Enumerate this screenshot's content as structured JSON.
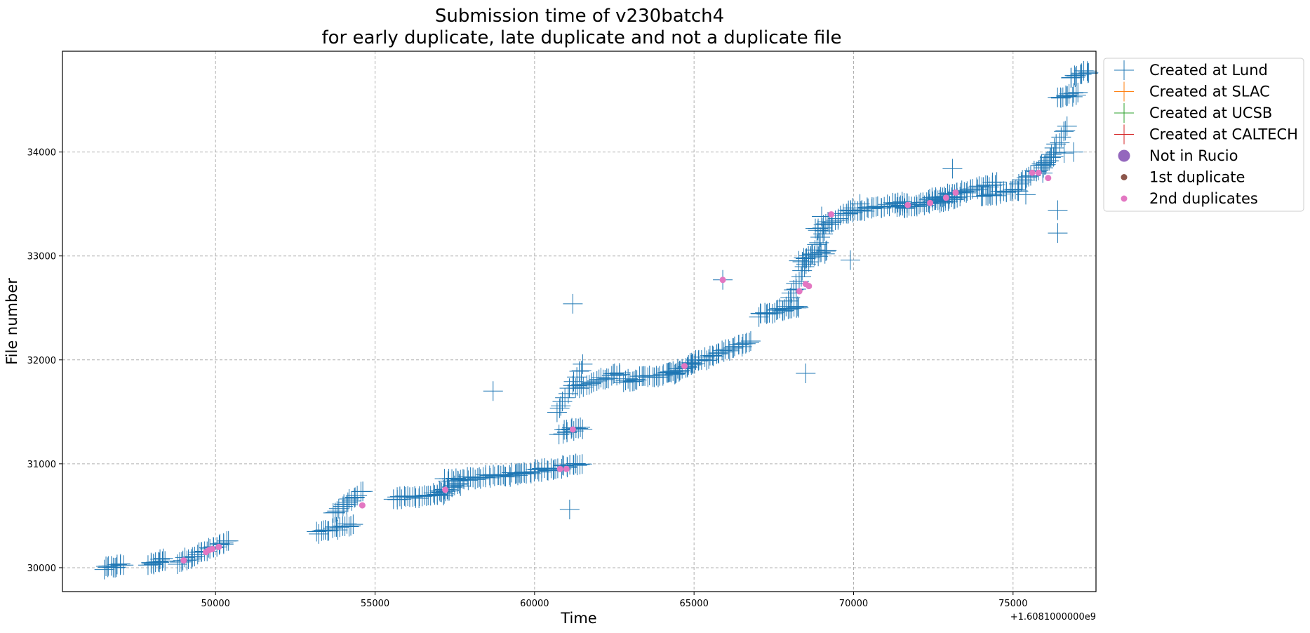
{
  "chart_data": {
    "type": "scatter",
    "title": "Submission time of v230batch4",
    "subtitle": "for early duplicate, late duplicate and not a duplicate file",
    "xlabel": "Time",
    "ylabel": "File number",
    "x_offset_label": "+1.6081000000e9",
    "xlim": [
      45200,
      77600
    ],
    "ylim": [
      29770,
      34970
    ],
    "xticks": [
      50000,
      55000,
      60000,
      65000,
      70000,
      75000
    ],
    "yticks": [
      30000,
      31000,
      32000,
      33000,
      34000
    ],
    "grid": true,
    "legend_position": "upper right, outside plot",
    "legend": [
      {
        "label": "Created at Lund",
        "marker": "plus",
        "color": "#1f77b4"
      },
      {
        "label": "Created at SLAC",
        "marker": "plus",
        "color": "#ff7f0e"
      },
      {
        "label": "Created at UCSB",
        "marker": "plus",
        "color": "#2ca02c"
      },
      {
        "label": "Created at CALTECH",
        "marker": "plus",
        "color": "#d62728"
      },
      {
        "label": "Not in Rucio",
        "marker": "big-dot",
        "color": "#9467bd"
      },
      {
        "label": "1st duplicate",
        "marker": "dot",
        "color": "#8c564b"
      },
      {
        "label": "2nd duplicates",
        "marker": "dot",
        "color": "#e377c2"
      }
    ],
    "clusters": [
      {
        "name": "Created at Lund",
        "segments": [
          [
            46500,
            47100,
            29990,
            30030
          ],
          [
            47900,
            48400,
            30030,
            30080
          ],
          [
            48800,
            50400,
            30050,
            30250
          ],
          [
            53200,
            54300,
            30330,
            30420
          ],
          [
            53700,
            54600,
            30520,
            30740
          ],
          [
            55600,
            57300,
            30660,
            30720
          ],
          [
            57000,
            57700,
            30720,
            30800
          ],
          [
            57200,
            59500,
            30840,
            30900
          ],
          [
            59400,
            61500,
            30900,
            31000
          ],
          [
            60800,
            61500,
            31300,
            31350
          ],
          [
            60700,
            61500,
            31480,
            31950
          ],
          [
            61300,
            62700,
            31730,
            31880
          ],
          [
            62800,
            64500,
            31800,
            31880
          ],
          [
            64200,
            65100,
            31860,
            31980
          ],
          [
            64800,
            66800,
            31950,
            32180
          ],
          [
            67000,
            68300,
            32430,
            32520
          ],
          [
            67800,
            69100,
            32480,
            33250
          ],
          [
            68300,
            69200,
            32950,
            33050
          ],
          [
            68800,
            70000,
            33250,
            33450
          ],
          [
            69800,
            71700,
            33420,
            33520
          ],
          [
            71400,
            73300,
            33460,
            33560
          ],
          [
            72300,
            74500,
            33530,
            33700
          ],
          [
            74000,
            75200,
            33570,
            33640
          ],
          [
            75200,
            76300,
            33680,
            33980
          ],
          [
            75900,
            76700,
            33800,
            34260
          ],
          [
            76400,
            77000,
            34520,
            34560
          ],
          [
            76800,
            77400,
            34720,
            34780
          ]
        ]
      },
      {
        "name": "Created at Lund",
        "points": [
          [
            58700,
            31700
          ],
          [
            61200,
            32540
          ],
          [
            61100,
            30560
          ],
          [
            61000,
            31330
          ],
          [
            65900,
            32770
          ],
          [
            68500,
            31870
          ],
          [
            69900,
            32960
          ],
          [
            73100,
            33840
          ],
          [
            76400,
            33440
          ],
          [
            76400,
            33220
          ],
          [
            76600,
            33990
          ],
          [
            76900,
            34000
          ],
          [
            75400,
            33590
          ],
          [
            70200,
            33500
          ],
          [
            69000,
            33380
          ]
        ]
      },
      {
        "name": "2nd duplicates",
        "points": [
          [
            49000,
            30070
          ],
          [
            49700,
            30150
          ],
          [
            49800,
            30170
          ],
          [
            49900,
            30180
          ],
          [
            50100,
            30200
          ],
          [
            54600,
            30600
          ],
          [
            57200,
            30750
          ],
          [
            60800,
            30950
          ],
          [
            61000,
            30950
          ],
          [
            61200,
            31330
          ],
          [
            64700,
            31940
          ],
          [
            65900,
            32770
          ],
          [
            68300,
            32660
          ],
          [
            68500,
            32730
          ],
          [
            68600,
            32710
          ],
          [
            69300,
            33400
          ],
          [
            71700,
            33490
          ],
          [
            72400,
            33510
          ],
          [
            72900,
            33560
          ],
          [
            73200,
            33610
          ],
          [
            75600,
            33800
          ],
          [
            75800,
            33800
          ],
          [
            76100,
            33750
          ]
        ]
      }
    ]
  }
}
